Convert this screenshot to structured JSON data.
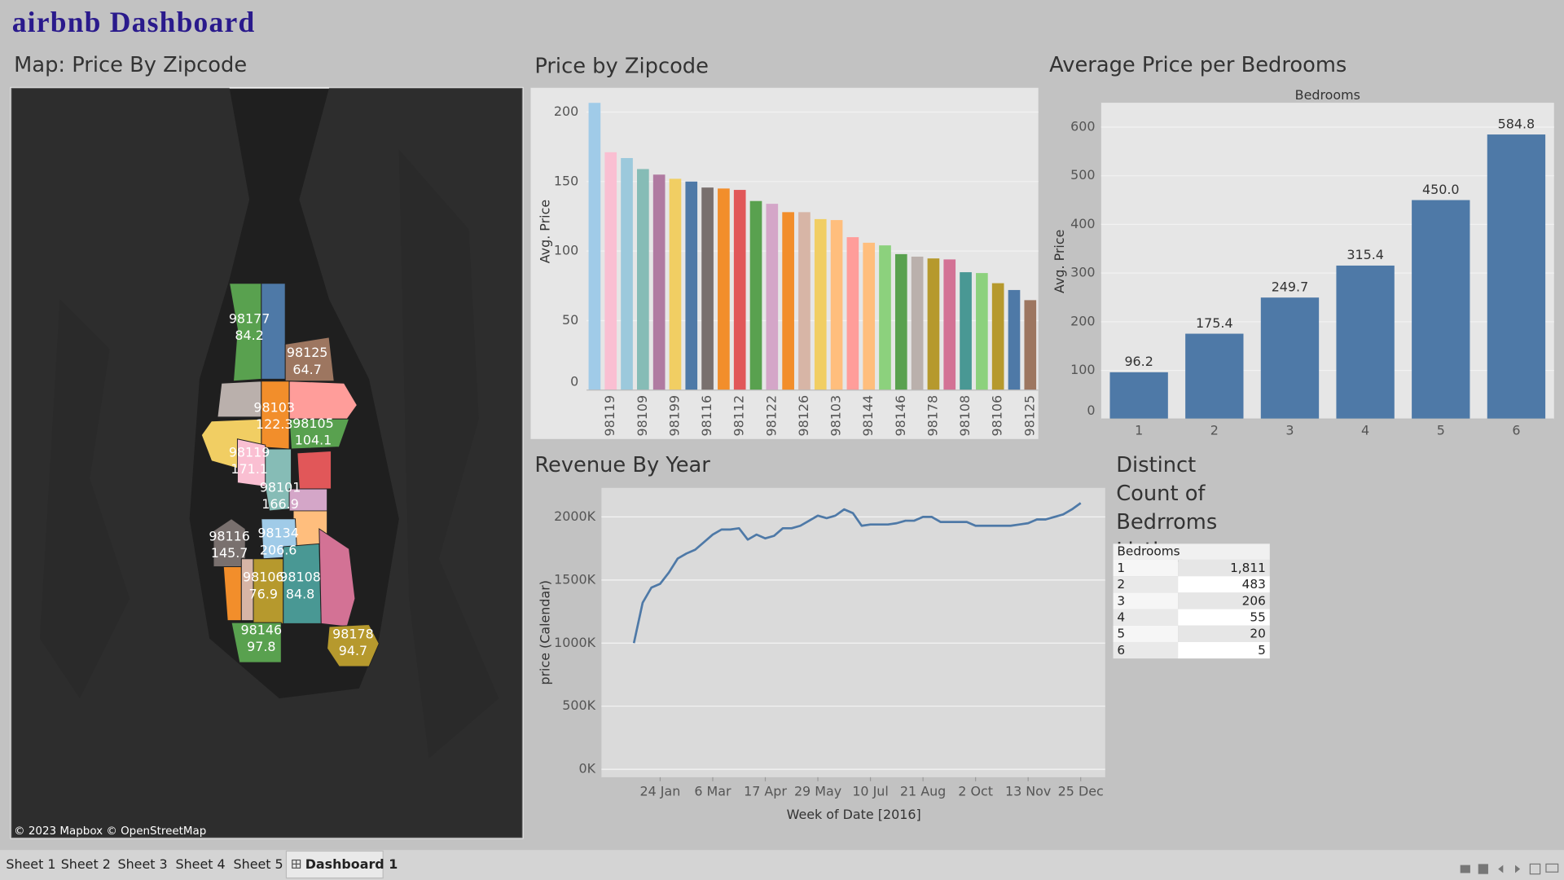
{
  "header": {
    "title": "airbnb Dashboard"
  },
  "map": {
    "title": "Map: Price By Zipcode",
    "regions": [
      {
        "zipcode": "98177",
        "value": 84.2
      },
      {
        "zipcode": "98125",
        "value": 64.7
      },
      {
        "zipcode": "98103",
        "value": 122.3
      },
      {
        "zipcode": "98105",
        "value": 104.1
      },
      {
        "zipcode": "98119",
        "value": 171.1
      },
      {
        "zipcode": "98101",
        "value": 166.9
      },
      {
        "zipcode": "98116",
        "value": 145.7
      },
      {
        "zipcode": "98134",
        "value": 206.6
      },
      {
        "zipcode": "98106",
        "value": 76.9
      },
      {
        "zipcode": "98108",
        "value": 84.8
      },
      {
        "zipcode": "98146",
        "value": 97.8
      },
      {
        "zipcode": "98178",
        "value": 94.7
      }
    ],
    "attribution": "© 2023 Mapbox © OpenStreetMap"
  },
  "chart_data": [
    {
      "type": "bar",
      "title": "Price by Zipcode",
      "y_label": "Avg. Price",
      "categories": [
        null,
        "98119",
        null,
        "98109",
        null,
        "98199",
        null,
        "98116",
        null,
        "98112",
        null,
        "98122",
        null,
        "98126",
        null,
        "98103",
        null,
        "98144",
        null,
        "98146",
        null,
        "98178",
        null,
        "98108",
        null,
        "98106",
        null,
        "98125"
      ],
      "values": [
        206.6,
        171.1,
        166.9,
        159,
        155,
        152,
        150,
        145.7,
        145,
        144,
        136,
        134,
        128,
        128,
        123,
        122.3,
        110,
        106,
        104.1,
        97.8,
        96,
        94.7,
        94,
        84.8,
        84.2,
        76.9,
        72,
        64.7
      ],
      "colors": [
        "#a0cbe8",
        "#fabfd2",
        "#9cc9dc",
        "#86bcb6",
        "#b07aa1",
        "#f1ce63",
        "#4e79a7",
        "#79706e",
        "#f28e2b",
        "#e15759",
        "#59a14f",
        "#d4a6c8",
        "#f28e2b",
        "#d7b5a6",
        "#f1ce63",
        "#ffbe7d",
        "#ff9d9a",
        "#ffbe7d",
        "#8cd17d",
        "#59a14f",
        "#bab0ac",
        "#b6992d",
        "#d37295",
        "#499894",
        "#8cd17d",
        "#b6992d",
        "#4e79a7",
        "#9d7660"
      ],
      "ylim": [
        0,
        216
      ],
      "yticks": [
        0,
        50,
        100,
        150,
        200
      ],
      "grid": true
    },
    {
      "type": "bar",
      "title": "Average Price per Bedrooms",
      "header": "Bedrooms",
      "y_label": "Avg. Price",
      "categories": [
        "1",
        "2",
        "3",
        "4",
        "5",
        "6"
      ],
      "values": [
        96.2,
        175.4,
        249.7,
        315.4,
        450.0,
        584.8
      ],
      "value_labels": [
        "96.2",
        "175.4",
        "249.7",
        "315.4",
        "450.0",
        "584.8"
      ],
      "color": "#4e79a7",
      "ylim": [
        0,
        650
      ],
      "yticks": [
        0,
        100,
        200,
        300,
        400,
        500,
        600
      ],
      "grid": true
    },
    {
      "type": "line",
      "title": "Revenue By Year",
      "x_label": "Week of Date [2016]",
      "y_label": "price (Calendar)",
      "x": [
        "2016-01-03",
        "2016-01-10",
        "2016-01-17",
        "2016-01-24",
        "2016-01-31",
        "2016-02-07",
        "2016-02-14",
        "2016-02-21",
        "2016-02-28",
        "2016-03-06",
        "2016-03-13",
        "2016-03-20",
        "2016-03-27",
        "2016-04-03",
        "2016-04-10",
        "2016-04-17",
        "2016-04-24",
        "2016-05-01",
        "2016-05-08",
        "2016-05-15",
        "2016-05-22",
        "2016-05-29",
        "2016-06-05",
        "2016-06-12",
        "2016-06-19",
        "2016-06-26",
        "2016-07-03",
        "2016-07-10",
        "2016-07-17",
        "2016-07-24",
        "2016-07-31",
        "2016-08-07",
        "2016-08-14",
        "2016-08-21",
        "2016-08-28",
        "2016-09-04",
        "2016-09-11",
        "2016-09-18",
        "2016-09-25",
        "2016-10-02",
        "2016-10-09",
        "2016-10-16",
        "2016-10-23",
        "2016-10-30",
        "2016-11-06",
        "2016-11-13",
        "2016-11-20",
        "2016-11-27",
        "2016-12-04",
        "2016-12-11",
        "2016-12-18",
        "2016-12-25"
      ],
      "values": [
        1000000,
        1320000,
        1440000,
        1470000,
        1560000,
        1670000,
        1710000,
        1740000,
        1800000,
        1860000,
        1900000,
        1900000,
        1910000,
        1820000,
        1860000,
        1830000,
        1850000,
        1910000,
        1910000,
        1930000,
        1970000,
        2010000,
        1990000,
        2010000,
        2060000,
        2030000,
        1930000,
        1940000,
        1940000,
        1940000,
        1950000,
        1970000,
        1970000,
        2000000,
        2000000,
        1960000,
        1960000,
        1960000,
        1960000,
        1930000,
        1930000,
        1930000,
        1930000,
        1930000,
        1940000,
        1950000,
        1980000,
        1980000,
        2000000,
        2020000,
        2060000,
        2110000
      ],
      "color": "#4e79a7",
      "xlim": [
        "2016-01-01",
        "2016-12-31"
      ],
      "xticks": [
        {
          "value": "2016-01-24",
          "label": "24 Jan"
        },
        {
          "value": "2016-03-06",
          "label": "6 Mar"
        },
        {
          "value": "2016-04-17",
          "label": "17 Apr"
        },
        {
          "value": "2016-05-29",
          "label": "29 May"
        },
        {
          "value": "2016-07-10",
          "label": "10 Jul"
        },
        {
          "value": "2016-08-21",
          "label": "21 Aug"
        },
        {
          "value": "2016-10-02",
          "label": "2 Oct"
        },
        {
          "value": "2016-11-13",
          "label": "13 Nov"
        },
        {
          "value": "2016-12-25",
          "label": "25 Dec"
        }
      ],
      "ylim": [
        -63000,
        2230000
      ],
      "yticks": [
        {
          "value": 0,
          "label": "0K"
        },
        {
          "value": 500000,
          "label": "500K"
        },
        {
          "value": 1000000,
          "label": "1000K"
        },
        {
          "value": 1500000,
          "label": "1500K"
        },
        {
          "value": 2000000,
          "label": "2000K"
        }
      ],
      "grid": true
    }
  ],
  "table": {
    "title": "Distinct Count of Bedrroms Listing",
    "header": "Bedrooms",
    "rows": [
      [
        "1",
        "1,811"
      ],
      [
        "2",
        "483"
      ],
      [
        "3",
        "206"
      ],
      [
        "4",
        "55"
      ],
      [
        "5",
        "20"
      ],
      [
        "6",
        "5"
      ]
    ]
  },
  "tabs": [
    "Sheet 1",
    "Sheet 2",
    "Sheet 3",
    "Sheet 4",
    "Sheet 5",
    "Dashboard 1"
  ]
}
